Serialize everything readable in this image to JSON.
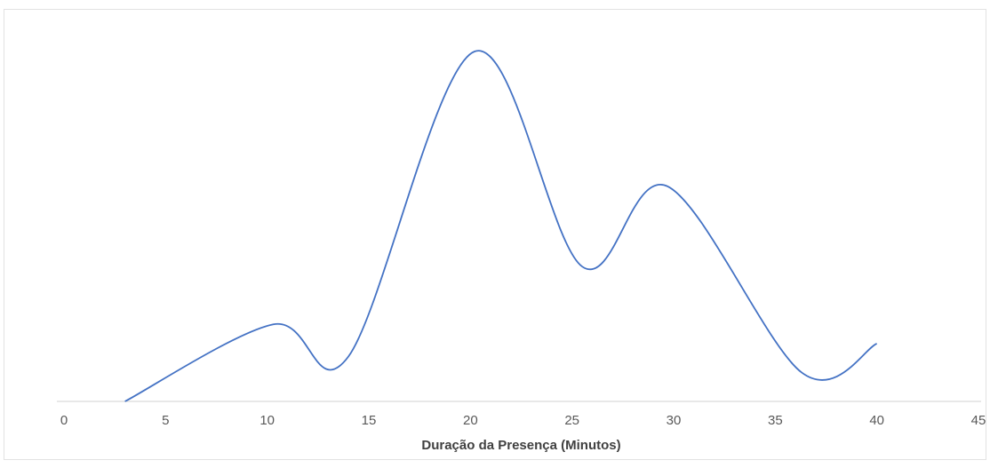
{
  "chart_data": {
    "type": "line",
    "xlabel": "Duração da Presença (Minutos)",
    "ylabel": "",
    "xlim": [
      0,
      45
    ],
    "x_ticks": [
      "0",
      "5",
      "10",
      "15",
      "20",
      "25",
      "30",
      "35",
      "40",
      "45"
    ],
    "y_axis_visible": false,
    "grid": false,
    "smooth": true,
    "line_color": "#4472c4",
    "series": [
      {
        "x": [
          3,
          10.3,
          14,
          20.2,
          25.5,
          29.7,
          36.3,
          40
        ],
        "y": [
          0,
          2.4,
          1.4,
          10.9,
          4.2,
          6.7,
          0.9,
          1.8
        ]
      }
    ]
  }
}
